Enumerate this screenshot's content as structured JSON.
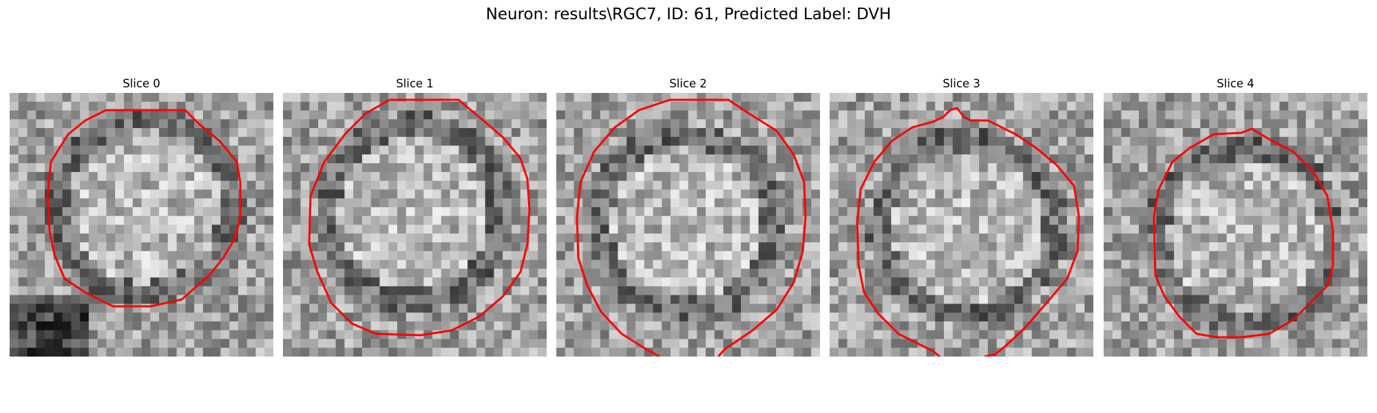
{
  "figure": {
    "title": "Neuron: results\\RGC7, ID: 61, Predicted Label: DVH",
    "contour_color": "#ff0000"
  },
  "panels": [
    {
      "title": "Slice 0"
    },
    {
      "title": "Slice 1"
    },
    {
      "title": "Slice 2"
    },
    {
      "title": "Slice 3"
    },
    {
      "title": "Slice 4"
    }
  ]
}
